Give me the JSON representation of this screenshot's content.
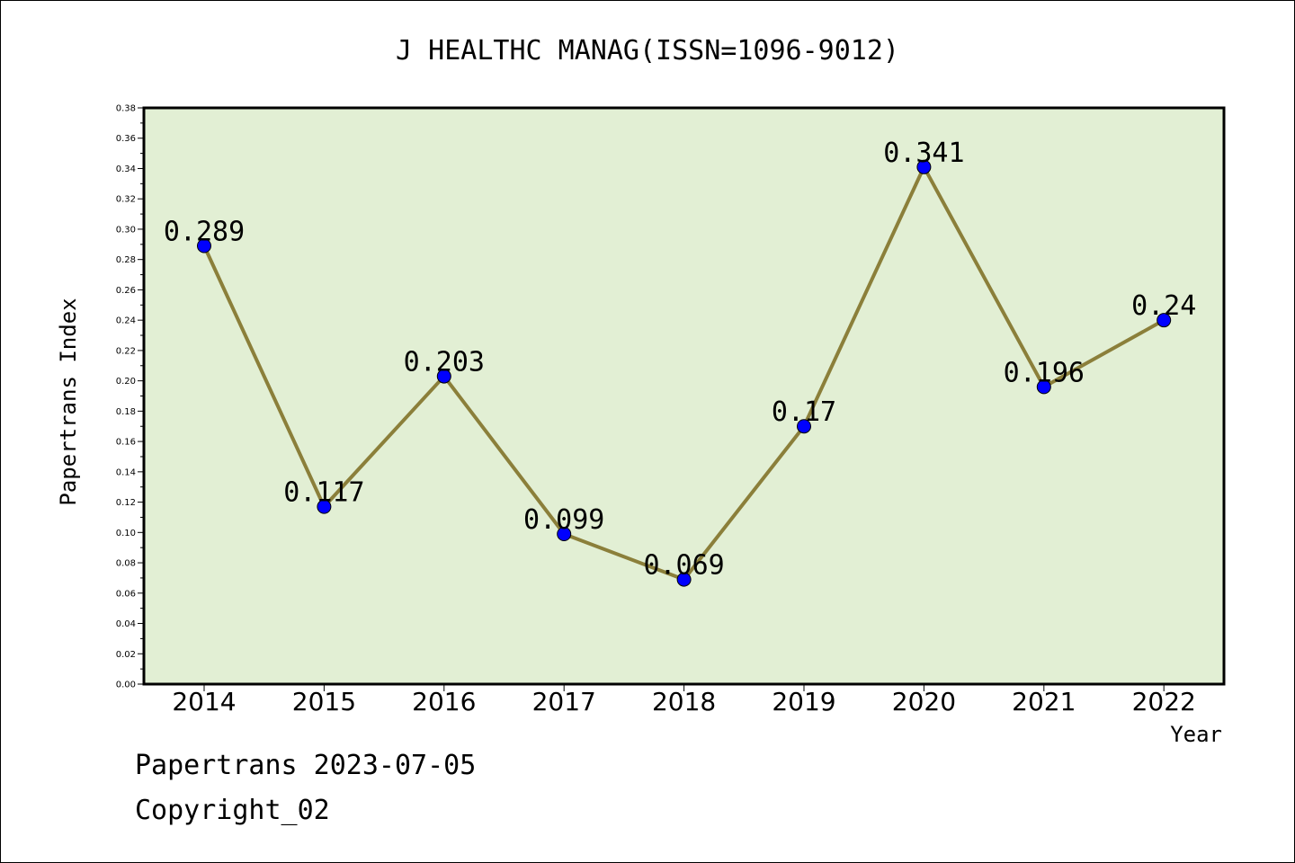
{
  "chart_data": {
    "type": "line",
    "title": "J HEALTHC MANAG(ISSN=1096-9012)",
    "xlabel": "Year",
    "ylabel": "Papertrans Index",
    "categories": [
      "2014",
      "2015",
      "2016",
      "2017",
      "2018",
      "2019",
      "2020",
      "2021",
      "2022"
    ],
    "values": [
      0.289,
      0.117,
      0.203,
      0.099,
      0.069,
      0.17,
      0.341,
      0.196,
      0.24
    ],
    "data_labels": [
      "0.289",
      "0.117",
      "0.203",
      "0.099",
      "0.069",
      "0.17",
      "0.341",
      "0.196",
      "0.24"
    ],
    "ylim": [
      0,
      0.38
    ],
    "yticks": [
      "0.00",
      "0.02",
      "0.04",
      "0.06",
      "0.08",
      "0.10",
      "0.12",
      "0.14",
      "0.16",
      "0.18",
      "0.20",
      "0.22",
      "0.24",
      "0.26",
      "0.28",
      "0.30",
      "0.32",
      "0.34",
      "0.36",
      "0.38"
    ],
    "grid": false,
    "colors": {
      "plot_bg": "#e2efd4",
      "line": "#8b7f3a",
      "marker": "#0000ff"
    }
  },
  "footer": {
    "date_line": "Papertrans 2023-07-05",
    "copyright": "Copyright_02"
  }
}
